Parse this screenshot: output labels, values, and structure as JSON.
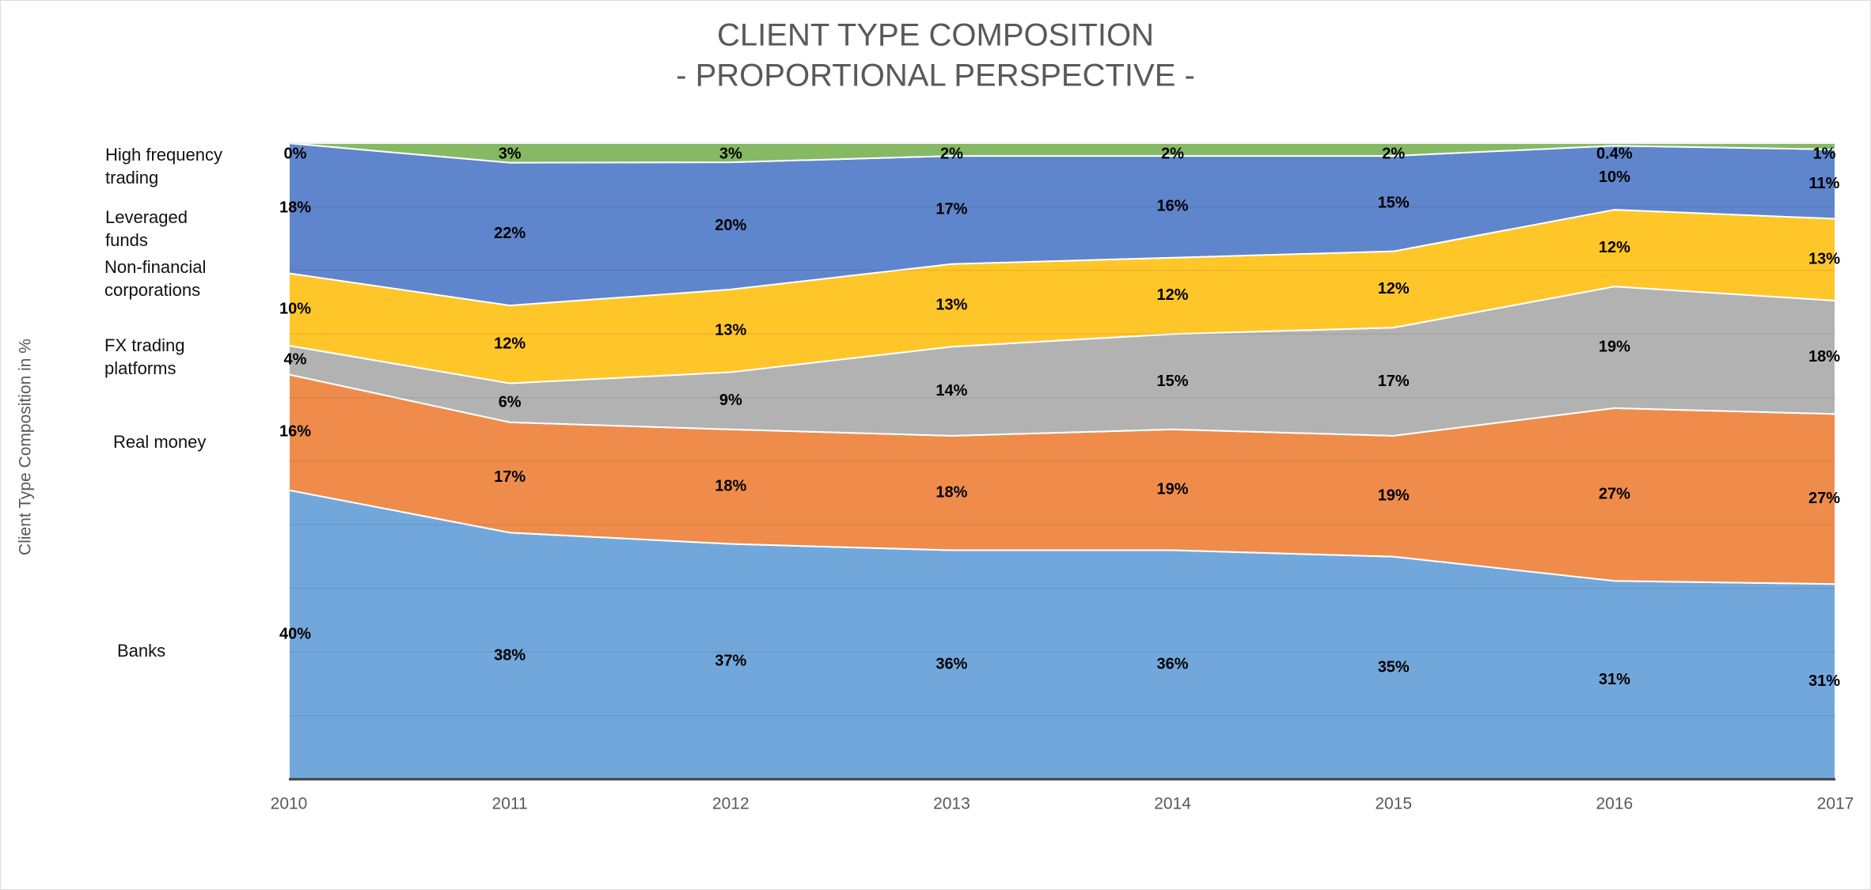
{
  "chart_data": {
    "type": "stacked_area_100",
    "title": "CLIENT TYPE COMPOSITION",
    "subtitle": "- PROPORTIONAL PERSPECTIVE -",
    "y_axis_label": "Client Type Composition in %",
    "categories": [
      "2010",
      "2011",
      "2012",
      "2013",
      "2014",
      "2015",
      "2016",
      "2017"
    ],
    "ylim": [
      0,
      100
    ],
    "yticks": [
      0,
      10,
      20,
      30,
      40,
      50,
      60,
      70,
      80,
      90,
      100
    ],
    "grid": true,
    "series": [
      {
        "name": "Banks",
        "color": "#72a7db",
        "values": [
          40,
          38,
          37,
          36,
          36,
          35,
          31,
          31
        ],
        "value_labels": [
          "40%",
          "38%",
          "37%",
          "36%",
          "36%",
          "35%",
          "31%",
          "31%"
        ]
      },
      {
        "name": "Real money",
        "color": "#ef8c4c",
        "values": [
          16,
          17,
          18,
          18,
          19,
          19,
          27,
          27
        ],
        "value_labels": [
          "16%",
          "17%",
          "18%",
          "18%",
          "19%",
          "19%",
          "27%",
          "27%"
        ]
      },
      {
        "name": "FX trading platforms",
        "color": "#b2b2b2",
        "values": [
          4,
          6,
          9,
          14,
          15,
          17,
          19,
          18
        ],
        "value_labels": [
          "4%",
          "6%",
          "9%",
          "14%",
          "15%",
          "17%",
          "19%",
          "18%"
        ]
      },
      {
        "name": "Non-financial corporations",
        "color": "#ffc629",
        "values": [
          10,
          12,
          13,
          13,
          12,
          12,
          12,
          13
        ],
        "value_labels": [
          "10%",
          "12%",
          "13%",
          "13%",
          "12%",
          "12%",
          "12%",
          "13%"
        ]
      },
      {
        "name": "Leveraged funds",
        "color": "#5f85cc",
        "values": [
          18,
          22,
          20,
          17,
          16,
          15,
          10,
          11
        ],
        "value_labels": [
          "18%",
          "22%",
          "20%",
          "17%",
          "16%",
          "15%",
          "10%",
          "11%"
        ]
      },
      {
        "name": "High frequency trading",
        "color": "#86b963",
        "values": [
          0,
          3,
          3,
          2,
          2,
          2,
          0.4,
          1
        ],
        "value_labels": [
          "0%",
          "3%",
          "3%",
          "2%",
          "2%",
          "2%",
          "0.4%",
          "1%"
        ]
      }
    ]
  }
}
